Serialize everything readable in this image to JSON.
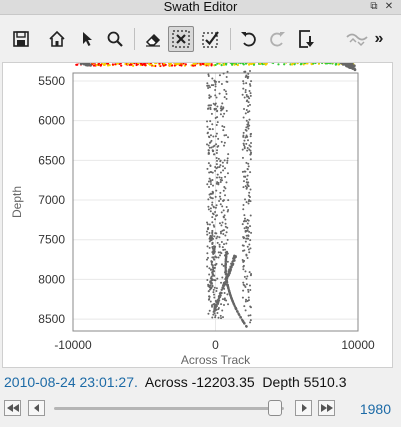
{
  "window": {
    "title": "Swath Editor",
    "float_glyph": "⧉",
    "close_glyph": "✕"
  },
  "toolbar": {
    "buttons": [
      {
        "name": "save-icon",
        "active": false
      },
      {
        "name": "home-icon",
        "active": false
      },
      {
        "name": "pointer-icon",
        "active": false
      },
      {
        "name": "zoom-icon",
        "active": false
      },
      {
        "name": "eraser-icon",
        "active": false
      },
      {
        "name": "select-points-icon",
        "active": true
      },
      {
        "name": "accept-points-icon",
        "active": false
      },
      {
        "name": "undo-icon",
        "active": false
      },
      {
        "name": "redo-icon",
        "active": false,
        "disabled": true
      },
      {
        "name": "export-icon",
        "active": false
      },
      {
        "name": "ping-settings-icon",
        "active": false,
        "disabled": true
      }
    ],
    "overflow": "»"
  },
  "chart_data": {
    "type": "scatter",
    "xlabel": "Across Track",
    "ylabel": "Depth",
    "xlim": [
      -10000,
      10000
    ],
    "ylim": [
      8650,
      5400
    ],
    "xticks": [
      -10000,
      0,
      10000
    ],
    "yticks": [
      5500,
      6000,
      6500,
      7000,
      7500,
      8000,
      8500
    ],
    "grid": true,
    "series": [
      {
        "color": "#ff0000",
        "note_points": [
          [
            -9500,
            5270
          ],
          [
            -5000,
            5220
          ],
          [
            0,
            5230
          ]
        ]
      },
      {
        "color": "#f5d000",
        "note_points": [
          [
            -8500,
            5300
          ],
          [
            -4000,
            5260
          ],
          [
            7000,
            5260
          ]
        ]
      },
      {
        "color": "#33cc33",
        "note_points": [
          [
            2000,
            5220
          ],
          [
            6000,
            5250
          ],
          [
            9500,
            5290
          ]
        ]
      },
      {
        "color": "#666666",
        "note_points": [
          [
            0,
            5600
          ],
          [
            1500,
            7000
          ],
          [
            2500,
            8500
          ]
        ]
      }
    ]
  },
  "status": {
    "timestamp": "2010-08-24 23:01:27.",
    "across": "Across -12203.35",
    "depth": "Depth 5510.3"
  },
  "nav": {
    "frame": "1980",
    "slider_fraction": 0.96
  }
}
